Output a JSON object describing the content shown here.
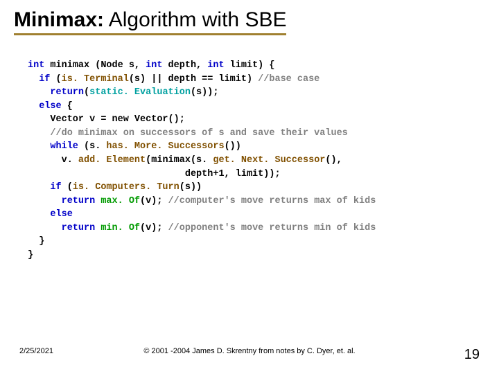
{
  "title": {
    "bold_part": "Minimax:",
    "rest": " Algorithm with SBE",
    "underline_color": "#a08030"
  },
  "code": {
    "l1a": "int",
    "l1b": " minimax (Node s, ",
    "l1c": "int",
    "l1d": " depth, ",
    "l1e": "int",
    "l1f": " limit) {",
    "l2a": "  if",
    "l2b": " (",
    "l2c": "is. Terminal",
    "l2d": "(s) || depth == limit) ",
    "l2e": "//base case",
    "l3a": "    return",
    "l3b": "(",
    "l3c": "static. Evaluation",
    "l3d": "(s));",
    "l4a": "  else",
    "l4b": " {",
    "l5": "    Vector v = new Vector();",
    "l6": "    //do minimax on successors of s and save their values",
    "l7a": "    while",
    "l7b": " (s.",
    "l7c": " has. More. Successors",
    "l7d": "())",
    "l8a": "      v.",
    "l8b": " add. Element",
    "l8c": "(minimax(s.",
    "l8d": " get. Next. Successor",
    "l8e": "(),",
    "l9": "                            depth+1, limit));",
    "l10a": "    if",
    "l10b": " (",
    "l10c": "is. Computers. Turn",
    "l10d": "(s))",
    "l11a": "      return ",
    "l11b": "max. Of",
    "l11c": "(v); ",
    "l11d": "//computer's move returns max of kids",
    "l12": "    else",
    "l13a": "      return ",
    "l13b": "min. Of",
    "l13c": "(v); ",
    "l13d": "//opponent's move returns min of kids",
    "l14": "  }",
    "l15": "}"
  },
  "footer": {
    "date": "2/25/2021",
    "center": "© 2001 -2004 James D. Skrentny from notes by C. Dyer, et. al.",
    "page": "19"
  }
}
